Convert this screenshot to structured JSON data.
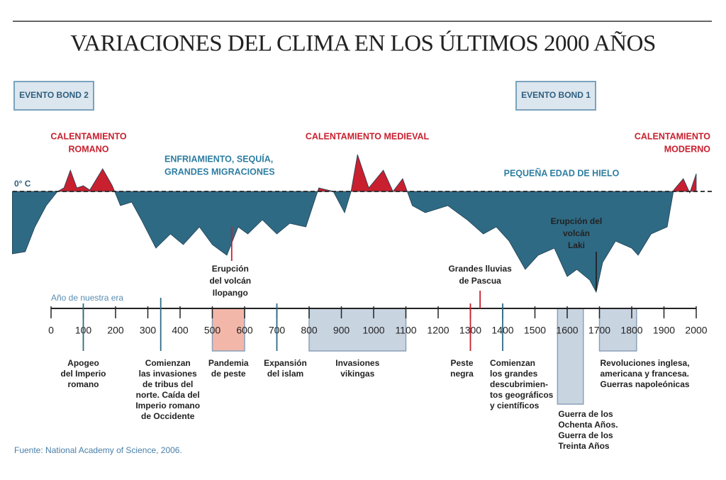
{
  "chart_data": {
    "type": "area",
    "title": "VARIACIONES DEL CLIMA EN LOS ÚLTIMOS 2000 AÑOS",
    "x": [
      -120,
      -80,
      -50,
      -15,
      20,
      40,
      60,
      80,
      100,
      120,
      160,
      190,
      215,
      250,
      280,
      325,
      370,
      410,
      460,
      500,
      545,
      580,
      610,
      655,
      700,
      740,
      790,
      830,
      875,
      910,
      930,
      950,
      985,
      1030,
      1060,
      1090,
      1120,
      1160,
      1230,
      1290,
      1340,
      1380,
      1420,
      1470,
      1510,
      1560,
      1600,
      1630,
      1670,
      1690,
      1710,
      1750,
      1800,
      1820,
      1860,
      1910,
      1930,
      1960,
      1980,
      2000
    ],
    "values": [
      -0.88,
      -0.85,
      -0.5,
      -0.2,
      0,
      0.05,
      0.3,
      0.05,
      0.08,
      0.02,
      0.32,
      0.08,
      -0.2,
      -0.15,
      -0.4,
      -0.8,
      -0.6,
      -0.75,
      -0.5,
      -0.75,
      -0.9,
      -0.5,
      -0.6,
      -0.4,
      -0.6,
      -0.45,
      -0.5,
      0.05,
      0,
      -0.3,
      0,
      0.52,
      0.05,
      0.3,
      0,
      0.18,
      -0.2,
      -0.3,
      -0.2,
      -0.4,
      -0.6,
      -0.5,
      -0.7,
      -1.1,
      -0.9,
      -0.8,
      -1.2,
      -1.1,
      -1.25,
      -1.42,
      -1.0,
      -0.7,
      -0.8,
      -0.9,
      -0.6,
      -0.5,
      0.02,
      0.18,
      -0.02,
      0.25
    ],
    "xlim": [
      -120,
      2000
    ],
    "ylim": [
      -1.5,
      0.6
    ],
    "xticks": [
      0,
      100,
      200,
      300,
      400,
      500,
      600,
      700,
      800,
      900,
      1000,
      1100,
      1200,
      1300,
      1400,
      1500,
      1600,
      1700,
      1800,
      1900,
      2000
    ],
    "warm_color": "#c8202f",
    "cold_color": "#2f6a84",
    "zero_label": "0° C",
    "x_axis_label": "Año de nuestra era",
    "bond_events": [
      "EVENTO BOND 2",
      "EVENTO BOND 1"
    ],
    "phases": [
      {
        "label": [
          "CALENTAMIENTO",
          "ROMANO"
        ],
        "color": "#c8202f"
      },
      {
        "label": [
          "ENFRIAMIENTO, SEQUÍA,",
          "GRANDES MIGRACIONES"
        ],
        "color": "#2e7da1"
      },
      {
        "label": [
          "CALENTAMIENTO MEDIEVAL"
        ],
        "color": "#c8202f"
      },
      {
        "label": [
          "PEQUEÑA EDAD DE HIELO"
        ],
        "color": "#2e7da1"
      },
      {
        "label": [
          "CALENTAMIENTO",
          "MODERNO"
        ],
        "color": "#c8202f"
      }
    ],
    "annotations": [
      {
        "year": 560,
        "label": [
          "Erupción",
          "del volcán",
          "Ilopango"
        ],
        "color": "#c8202f"
      },
      {
        "year": 1330,
        "label": [
          "Grandes lluvias",
          "de Pascua"
        ],
        "color": "#c8202f"
      },
      {
        "year": 1690,
        "label": [
          "Erupción del",
          "volcán",
          "Laki"
        ],
        "color": "#222222"
      }
    ],
    "events": [
      {
        "year": 100,
        "label": [
          "Apogeo",
          "del Imperio",
          "romano"
        ],
        "color": "#2f6a84"
      },
      {
        "year": 340,
        "label": [
          "Comienzan",
          "las invasiones",
          "de tribus del",
          "norte. Caída del",
          "Imperio romano",
          "de Occidente"
        ],
        "color": "#2f6a84"
      },
      {
        "year": 700,
        "label": [
          "Expansión",
          "del islam"
        ],
        "color": "#2f6a84"
      },
      {
        "year": 1300,
        "label": [
          "Peste",
          "negra"
        ],
        "color": "#c8202f"
      },
      {
        "year": 1400,
        "label": [
          "Comienzan",
          "los grandes",
          "descubrimien-",
          "tos geográficos",
          "y científicos"
        ],
        "color": "#2f6a84"
      }
    ],
    "periods": [
      {
        "start": 500,
        "end": 600,
        "label": [
          "Pandemia",
          "de peste"
        ],
        "color": "#f3b7aa"
      },
      {
        "start": 800,
        "end": 1100,
        "label": [
          "Invasiones",
          "vikingas"
        ],
        "color": "#c9d4e1"
      },
      {
        "start": 1570,
        "end": 1650,
        "label": [
          "Guerra de los",
          "Ochenta Años.",
          "Guerra de los",
          "Treinta Años"
        ],
        "color": "#c9d4e1"
      },
      {
        "start": 1700,
        "end": 1815,
        "label": [
          "Revoluciones inglesa,",
          "americana y francesa.",
          "Guerras napoleónicas"
        ],
        "color": "#c9d4e1"
      }
    ],
    "source": "Fuente: National Academy of Science, 2006."
  }
}
